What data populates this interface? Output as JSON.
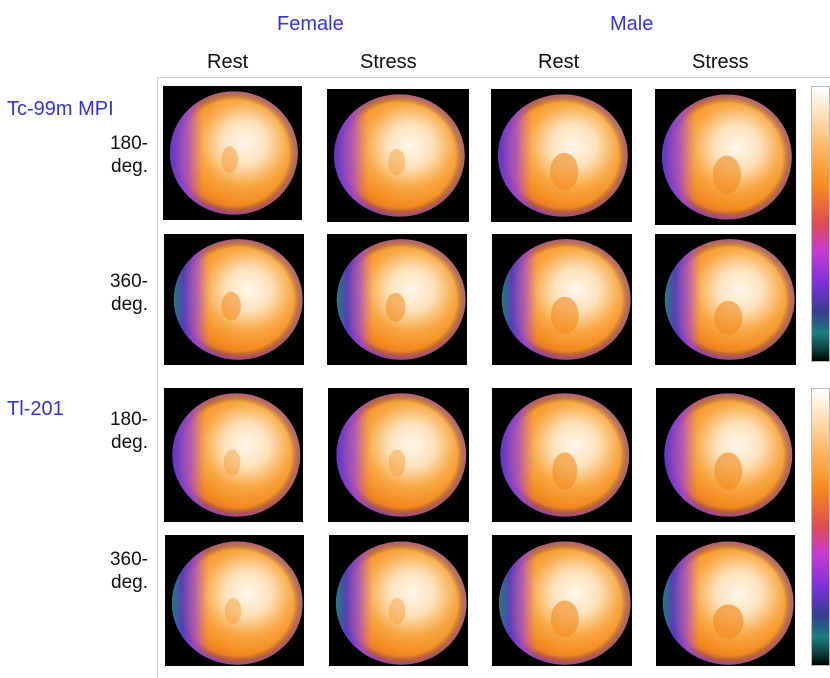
{
  "groups": {
    "female": "Female",
    "male": "Male"
  },
  "columns": [
    "Rest",
    "Stress",
    "Rest",
    "Stress"
  ],
  "tracers": {
    "tc": "Tc-99m MPI",
    "tl": "Tl-201"
  },
  "rows": [
    {
      "line1": "180-",
      "line2": "deg."
    },
    {
      "line1": "360-",
      "line2": "deg."
    },
    {
      "line1": "180-",
      "line2": "deg."
    },
    {
      "line1": "360-",
      "line2": "deg."
    }
  ],
  "colors": {
    "group_label": "#3333e0",
    "hot": "#ffffff",
    "mid": "#f58b1c",
    "edge": "#7a31d8",
    "background": "#000000"
  },
  "colorbar": {
    "direction": "bottom-low-to-top-high",
    "palette": "hot-metal"
  }
}
